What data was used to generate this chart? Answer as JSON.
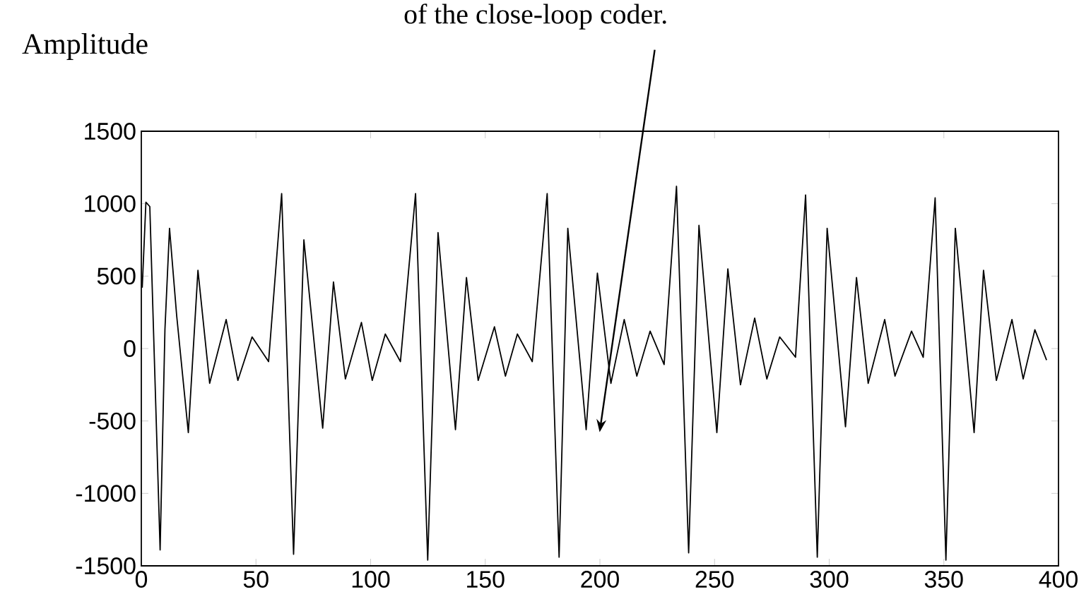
{
  "chart_data": {
    "type": "line",
    "ylabel": "Amplitude",
    "annotations": [
      "of the close-loop coder."
    ],
    "xlim": [
      0,
      400
    ],
    "ylim": [
      -1500,
      1500
    ],
    "xticks": [
      0,
      50,
      100,
      150,
      200,
      250,
      300,
      350,
      400
    ],
    "yticks": [
      -1500,
      -1000,
      -500,
      0,
      500,
      1000,
      1500
    ],
    "grid": false,
    "marker": "none",
    "line_style": "solid",
    "series": [
      {
        "color": "#000000",
        "x": [
          0.4,
          2,
          3.7,
          5.8,
          8.2,
          10.3,
          12.3,
          15.4,
          20.5,
          24.7,
          29.8,
          37,
          42.1,
          48.3,
          55.5,
          61.2,
          66.4,
          70.9,
          79.1,
          83.8,
          89,
          96,
          100.7,
          106.4,
          113,
          119.6,
          124.9,
          129.4,
          137,
          141.8,
          146.9,
          154,
          158.8,
          164,
          170.5,
          177,
          182.2,
          186,
          194,
          198.9,
          204.8,
          210.6,
          216.1,
          221.9,
          228,
          233.4,
          238.7,
          243.2,
          251,
          255.8,
          261.3,
          267.5,
          272.8,
          278.4,
          285.3,
          289.7,
          294.8,
          299.1,
          307.1,
          311.9,
          317,
          324.2,
          328.7,
          335.9,
          341,
          346.2,
          350.9,
          355,
          363.2,
          367.3,
          372.9,
          379.7,
          384.6,
          389.7,
          394.8
        ],
        "values": [
          420,
          1010,
          980,
          -130,
          -1390,
          130,
          830,
          230,
          -580,
          540,
          -240,
          200,
          -220,
          80,
          -90,
          1070,
          -1420,
          750,
          -550,
          460,
          -210,
          180,
          -220,
          100,
          -90,
          1070,
          -1460,
          800,
          -560,
          490,
          -220,
          150,
          -190,
          100,
          -90,
          1070,
          -1440,
          830,
          -560,
          520,
          -240,
          200,
          -190,
          120,
          -110,
          1120,
          -1410,
          850,
          -580,
          550,
          -250,
          210,
          -210,
          80,
          -60,
          1060,
          -1440,
          830,
          -540,
          490,
          -240,
          200,
          -190,
          120,
          -60,
          1040,
          -1460,
          830,
          -580,
          540,
          -220,
          200,
          -210,
          130,
          -80
        ]
      }
    ]
  }
}
